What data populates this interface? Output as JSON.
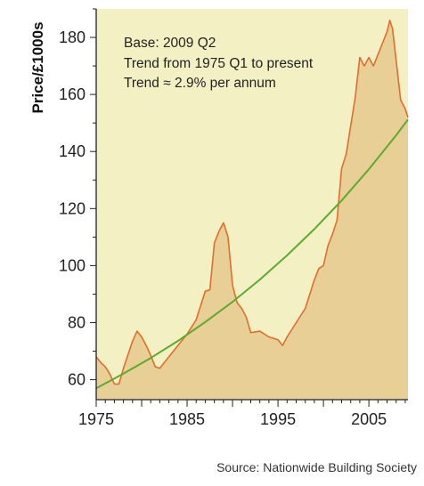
{
  "source_note": "Source: Nationwide Building Society",
  "colors": {
    "plot_background": "#f3f1c4",
    "area_fill": "#e8cf96",
    "price_line": "#e46c2c",
    "trend_line": "#5bab2e",
    "axis": "#222222"
  },
  "chart_data": {
    "type": "line",
    "title": "",
    "xlabel": "",
    "ylabel": "Price/£1000s",
    "xlim": [
      1975,
      2009.3
    ],
    "ylim": [
      53,
      190
    ],
    "x_ticks": [
      1975,
      1985,
      1995,
      2005
    ],
    "y_ticks": [
      60,
      80,
      100,
      120,
      140,
      160,
      180
    ],
    "grid": false,
    "annotations": [
      "Base: 2009 Q2",
      "Trend from 1975 Q1 to present",
      "Trend ≈ 2.9% per annum"
    ],
    "series": [
      {
        "style": "area",
        "x": [
          1975,
          1975.5,
          1976,
          1976.5,
          1977,
          1977.5,
          1978,
          1979,
          1979.5,
          1980,
          1980.5,
          1981,
          1981.5,
          1982,
          1982.5,
          1983,
          1984,
          1985,
          1986,
          1986.5,
          1987,
          1987.5,
          1988,
          1988.5,
          1989,
          1989.5,
          1990,
          1990.5,
          1991,
          1991.5,
          1992,
          1993,
          1994,
          1995,
          1995.5,
          1996,
          1997,
          1998,
          1999,
          1999.5,
          2000,
          2000.5,
          2001,
          2001.5,
          2002,
          2002.5,
          2003,
          2003.5,
          2004,
          2004.5,
          2005,
          2005.5,
          2006,
          2006.5,
          2007,
          2007.3,
          2007.6,
          2008,
          2008.5,
          2009,
          2009.3
        ],
        "y": [
          68,
          66,
          64.5,
          62,
          58.5,
          58.5,
          64,
          73.5,
          77,
          75,
          72,
          68.5,
          64.5,
          64,
          66,
          68,
          72,
          76,
          81,
          86,
          91,
          91.5,
          108,
          112,
          115,
          110,
          93,
          87,
          85,
          82,
          76.5,
          77,
          75,
          74,
          72,
          75,
          80,
          85,
          95,
          99,
          100,
          107,
          111,
          116,
          134,
          139,
          149,
          159,
          173,
          170,
          173,
          170,
          174,
          178,
          182,
          186,
          183,
          172,
          158,
          155,
          152
        ]
      },
      {
        "style": "trend",
        "x": [
          1975,
          1978,
          1981,
          1984,
          1987,
          1990,
          1993,
          1996,
          1999,
          2002,
          2005,
          2008,
          2009.3
        ],
        "y": [
          57,
          62.1,
          67.6,
          73.6,
          80.2,
          87.3,
          95.1,
          103.6,
          112.8,
          122.8,
          133.8,
          145.7,
          151.2
        ]
      }
    ]
  }
}
